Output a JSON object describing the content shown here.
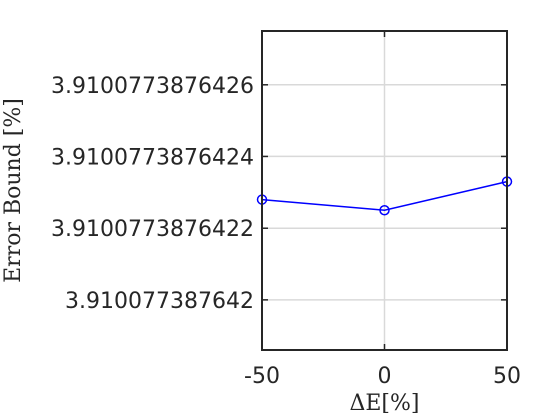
{
  "chart_data": {
    "type": "line",
    "xlabel": "ΔE[%]",
    "ylabel": "Error Bound [%]",
    "x": [
      -50,
      0,
      50
    ],
    "series": [
      {
        "values": [
          3.91007738764228,
          3.91007738764225,
          3.91007738764233
        ]
      }
    ],
    "xlim": [
      -50,
      50
    ],
    "ylim": [
      3.91007738764186,
      3.91007738764275
    ],
    "xticks": [
      -50,
      0,
      50
    ],
    "xtick_labels": [
      "-50",
      "0",
      "50"
    ],
    "yticks": [
      3.910077387642,
      3.9100773876422,
      3.9100773876424,
      3.9100773876426
    ],
    "ytick_labels": [
      "3.910077387642",
      "3.9100773876422",
      "3.9100773876424",
      "3.9100773876426"
    ],
    "grid": true,
    "line_color": "#0000ff",
    "marker": "circle"
  }
}
